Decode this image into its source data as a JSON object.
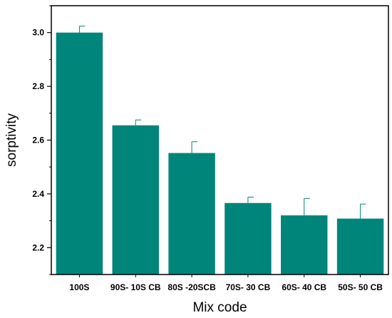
{
  "chart_data": {
    "type": "bar",
    "title": "",
    "xlabel": "Mix code",
    "ylabel": "sorptivity",
    "categories": [
      "100S",
      "90S- 10S CB",
      "80S -20SCB",
      "70S- 30 CB",
      "60S- 40 CB",
      "50S- 50 CB"
    ],
    "values": [
      3.0,
      2.655,
      2.552,
      2.366,
      2.32,
      2.308
    ],
    "errors": [
      0.024,
      0.02,
      0.042,
      0.022,
      0.063,
      0.054
    ],
    "ylim": [
      2.1,
      3.1
    ],
    "yticks": [
      2.2,
      2.4,
      2.6,
      2.8,
      3.0
    ],
    "ytick_labels": [
      "2.2",
      "2.4",
      "2.6",
      "2.8",
      "3.0"
    ],
    "bar_color": "#00857a",
    "grid": false,
    "legend": "none"
  }
}
